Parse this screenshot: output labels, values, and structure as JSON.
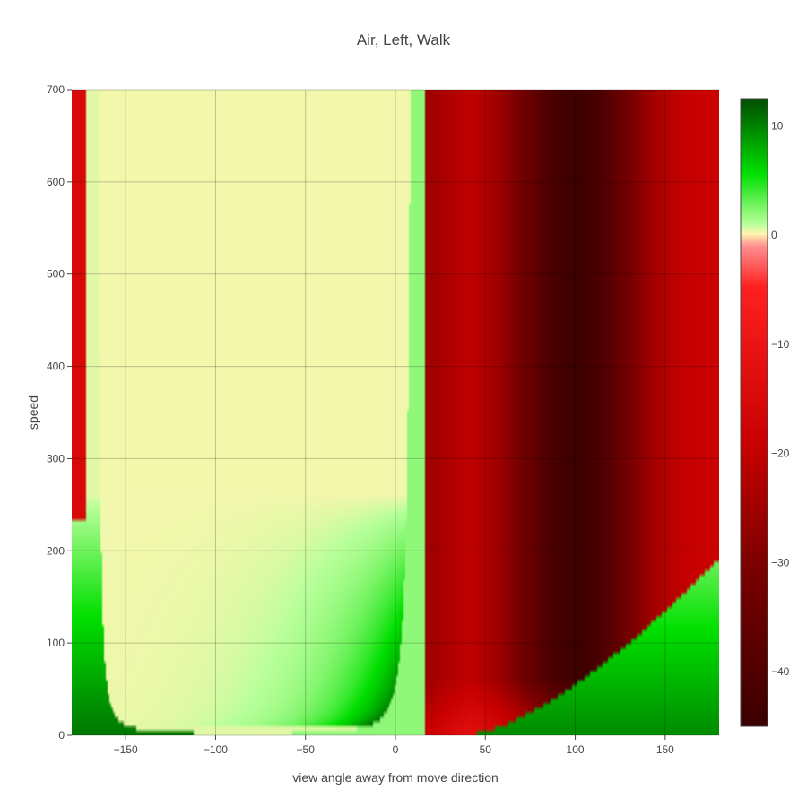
{
  "chart_data": {
    "type": "heatmap",
    "title": "Air, Left, Walk",
    "xlabel": "view angle away from move direction",
    "ylabel": "speed",
    "xlim": [
      -180,
      180
    ],
    "ylim": [
      0,
      700
    ],
    "x_ticks": [
      -150,
      -100,
      -50,
      0,
      50,
      100,
      150
    ],
    "y_ticks": [
      0,
      100,
      200,
      300,
      400,
      500,
      600,
      700
    ],
    "grid": true,
    "colorbar": {
      "range": [
        -45,
        12.5
      ],
      "ticks": [
        10,
        0,
        -10,
        -20,
        -30,
        -40
      ],
      "colorscale": [
        [
          0.0,
          "#3a0000"
        ],
        [
          0.25,
          "#7a0000"
        ],
        [
          0.45,
          "#c80000"
        ],
        [
          0.7,
          "#ff2020"
        ],
        [
          0.765,
          "#ff9090"
        ],
        [
          0.785,
          "#fff5b0"
        ],
        [
          0.8,
          "#b8ff9a"
        ],
        [
          0.88,
          "#00e000"
        ],
        [
          1.0,
          "#004d00"
        ]
      ]
    },
    "regions": [
      {
        "name": "positive near-zero band",
        "x_range": [
          -167,
          12
        ],
        "speed_range": [
          10,
          700
        ],
        "value": 0.5
      },
      {
        "name": "positive gain at low speed (left)",
        "x_range": [
          -180,
          -162
        ],
        "speed_range": [
          0,
          250
        ],
        "value": 5
      },
      {
        "name": "positive gain at low speed (center)",
        "x_range": [
          -50,
          15
        ],
        "speed_range": [
          0,
          200
        ],
        "value": 8
      },
      {
        "name": "positive gain at low speed (right)",
        "x_range": [
          50,
          180
        ],
        "speed_range": [
          0,
          200
        ],
        "value": 9
      },
      {
        "name": "negative region",
        "x_range": [
          15,
          180
        ],
        "speed_range": [
          0,
          700
        ],
        "value": -14
      },
      {
        "name": "strongest loss",
        "x": 100,
        "speed_range": [
          0,
          700
        ],
        "value": -42
      }
    ]
  }
}
